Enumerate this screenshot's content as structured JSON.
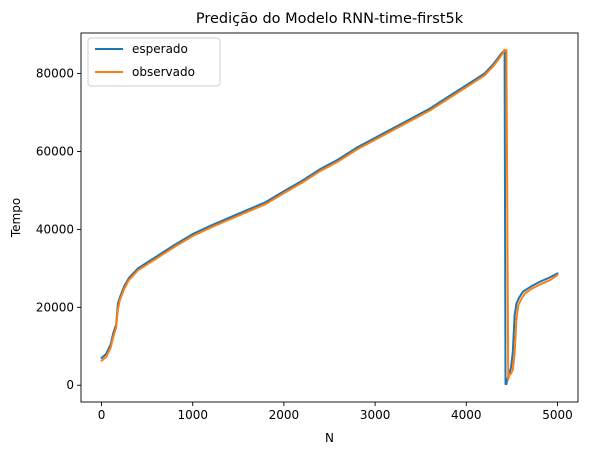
{
  "chart_data": {
    "type": "line",
    "title": "Predição do Modelo RNN-time-first5k",
    "xlabel": "N",
    "ylabel": "Tempo",
    "xlim": [
      -225,
      5225
    ],
    "ylim": [
      -4300,
      90400
    ],
    "xticks": [
      0,
      1000,
      2000,
      3000,
      4000,
      5000
    ],
    "yticks": [
      0,
      20000,
      40000,
      60000,
      80000
    ],
    "xtick_labels": [
      "0",
      "1000",
      "2000",
      "3000",
      "4000",
      "5000"
    ],
    "ytick_labels": [
      "0",
      "20000",
      "40000",
      "60000",
      "80000"
    ],
    "grid": false,
    "legend_position": "top-left",
    "series": [
      {
        "name": "esperado",
        "color": "#1f77b4",
        "x": [
          0,
          50,
          100,
          130,
          160,
          180,
          200,
          250,
          300,
          400,
          500,
          600,
          800,
          1000,
          1200,
          1400,
          1600,
          1800,
          2000,
          2200,
          2400,
          2600,
          2800,
          3000,
          3200,
          3400,
          3600,
          3800,
          4000,
          4200,
          4300,
          4380,
          4420,
          4430,
          4440,
          4450,
          4470,
          4490,
          4510,
          4530,
          4550,
          4580,
          4620,
          4700,
          4800,
          4900,
          5000
        ],
        "y": [
          7000,
          8000,
          10500,
          13500,
          15500,
          21000,
          22500,
          25500,
          27500,
          30000,
          31500,
          33000,
          36000,
          38800,
          41000,
          43000,
          45000,
          47000,
          49800,
          52500,
          55500,
          58000,
          61000,
          63500,
          66000,
          68500,
          71000,
          74000,
          77000,
          80000,
          82500,
          85000,
          86000,
          300,
          300,
          1500,
          3000,
          4500,
          8500,
          18000,
          21000,
          22500,
          24000,
          25200,
          26500,
          27500,
          28700
        ]
      },
      {
        "name": "observado",
        "color": "#ff7f0e",
        "x": [
          0,
          50,
          100,
          130,
          160,
          180,
          200,
          250,
          300,
          400,
          500,
          600,
          800,
          1000,
          1200,
          1400,
          1600,
          1800,
          2000,
          2200,
          2400,
          2600,
          2800,
          3000,
          3200,
          3400,
          3600,
          3800,
          4000,
          4200,
          4300,
          4380,
          4420,
          4440,
          4460,
          4470,
          4490,
          4510,
          4530,
          4550,
          4570,
          4600,
          4640,
          4720,
          4820,
          4920,
          5000
        ],
        "y": [
          6300,
          7200,
          9600,
          12500,
          14800,
          19500,
          21800,
          24800,
          27000,
          29500,
          31000,
          32500,
          35500,
          38300,
          40500,
          42500,
          44500,
          46500,
          49300,
          52000,
          55000,
          57500,
          60500,
          63000,
          65500,
          68000,
          70500,
          73500,
          76500,
          79500,
          82000,
          84500,
          86000,
          86000,
          1500,
          2500,
          3000,
          4000,
          8000,
          17000,
          20500,
          22000,
          23500,
          24800,
          26000,
          27000,
          28300
        ]
      }
    ]
  }
}
